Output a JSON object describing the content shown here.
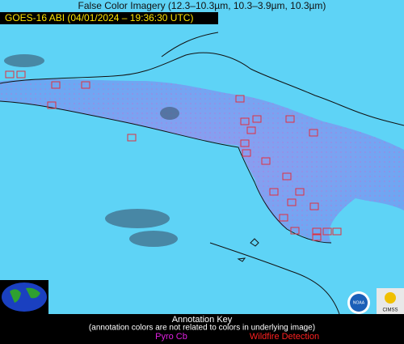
{
  "header": {
    "title": "False Color Imagery (12.3–10.3µm, 10.3–3.9µm, 10.3µm)",
    "timestamp": "GOES-16 ABI (04/01/2024 – 19:36:30 UTC)"
  },
  "annotation_key": {
    "title": "Annotation Key",
    "note": "(annotation colors are not related to colors in underlying image)",
    "pyro_cb": "Pyro Cb",
    "wildfire_detection": "Wildfire Detection"
  },
  "logos": {
    "noaa": "NOAA",
    "cimss": "CIMSS"
  }
}
